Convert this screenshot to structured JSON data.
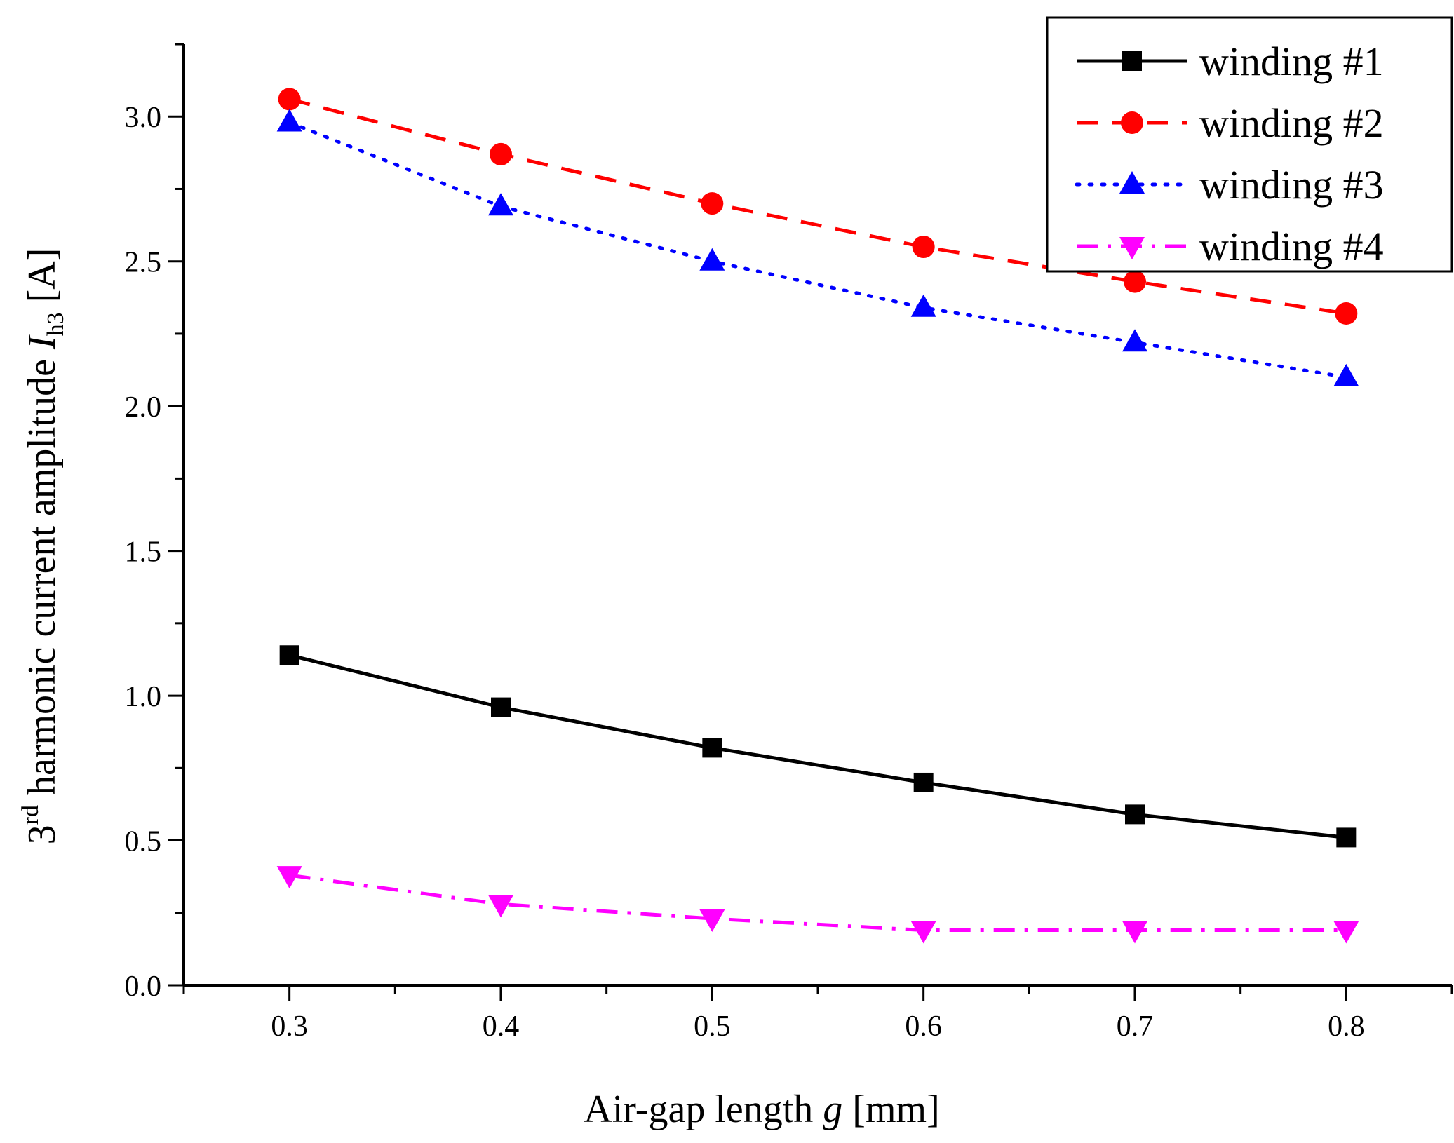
{
  "chart_data": {
    "type": "line",
    "title": "",
    "xlabel": {
      "main": "Air-gap length ",
      "var": "g",
      "unit": " [mm]"
    },
    "ylabel": {
      "pre": "3",
      "sup": "rd",
      "main": " harmonic current amplitude ",
      "var": "I",
      "sub": "h3",
      "unit": " [A]"
    },
    "x": [
      0.3,
      0.4,
      0.5,
      0.6,
      0.7,
      0.8
    ],
    "xlim": [
      0.25,
      0.85
    ],
    "ylim": [
      0.0,
      3.25
    ],
    "xticks": [
      "0.3",
      "0.4",
      "0.5",
      "0.6",
      "0.7",
      "0.8"
    ],
    "xtick_values": [
      0.3,
      0.4,
      0.5,
      0.6,
      0.7,
      0.8
    ],
    "yticks": [
      "0.0",
      "0.5",
      "1.0",
      "1.5",
      "2.0",
      "2.5",
      "3.0"
    ],
    "ytick_values": [
      0.0,
      0.5,
      1.0,
      1.5,
      2.0,
      2.5,
      3.0
    ],
    "grid": false,
    "legend_position": "top-right",
    "series": [
      {
        "name": "winding #1",
        "values": [
          1.14,
          0.96,
          0.82,
          0.7,
          0.59,
          0.51
        ],
        "color": "#000000",
        "marker": "square",
        "dash": "solid"
      },
      {
        "name": "winding #2",
        "values": [
          3.06,
          2.87,
          2.7,
          2.55,
          2.43,
          2.32
        ],
        "color": "#ff0000",
        "marker": "circle",
        "dash": "dashed"
      },
      {
        "name": "winding #3",
        "values": [
          2.98,
          2.69,
          2.5,
          2.34,
          2.22,
          2.1
        ],
        "color": "#0000ff",
        "marker": "triangle-up",
        "dash": "dotted"
      },
      {
        "name": "winding #4",
        "values": [
          0.38,
          0.28,
          0.23,
          0.19,
          0.19,
          0.19
        ],
        "color": "#ff00ff",
        "marker": "triangle-down",
        "dash": "dashdot"
      }
    ]
  }
}
